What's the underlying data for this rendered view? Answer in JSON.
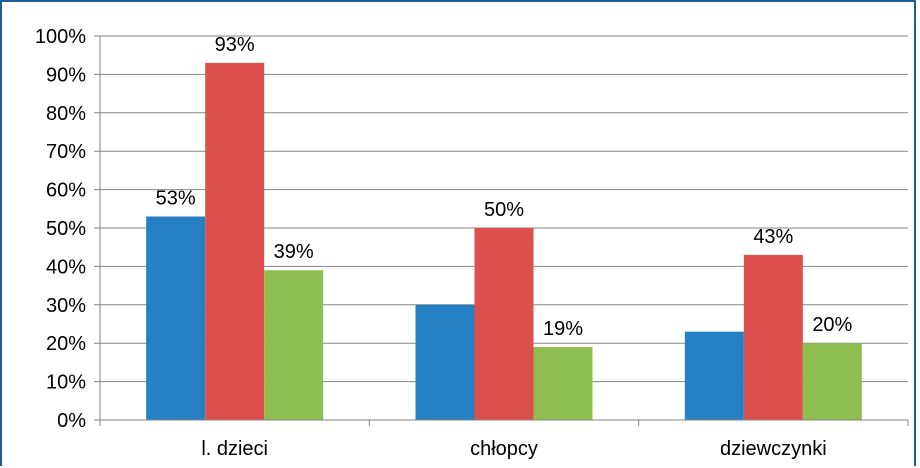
{
  "chart_data": {
    "type": "bar",
    "title": "",
    "xlabel": "",
    "ylabel": "",
    "categories": [
      "l. dzieci",
      "chłopcy",
      "dziewczynki"
    ],
    "series": [
      {
        "values": [
          0.53,
          0.3,
          0.23
        ],
        "labels": [
          "53%",
          "",
          ""
        ],
        "color": "#2581c4"
      },
      {
        "values": [
          0.93,
          0.5,
          0.43
        ],
        "labels": [
          "93%",
          "50%",
          "43%"
        ],
        "color": "#dd4f4c"
      },
      {
        "values": [
          0.39,
          0.19,
          0.2
        ],
        "labels": [
          "39%",
          "19%",
          "20%"
        ],
        "color": "#8ebe50"
      }
    ],
    "ylim": [
      0,
      1
    ],
    "y_ticks": [
      "0%",
      "10%",
      "20%",
      "30%",
      "40%",
      "50%",
      "60%",
      "70%",
      "80%",
      "90%",
      "100%"
    ],
    "grid": true,
    "legend": "none"
  },
  "colors": {
    "frame_border": "#1f5d99",
    "gridline": "#868686",
    "axis": "#868686"
  }
}
